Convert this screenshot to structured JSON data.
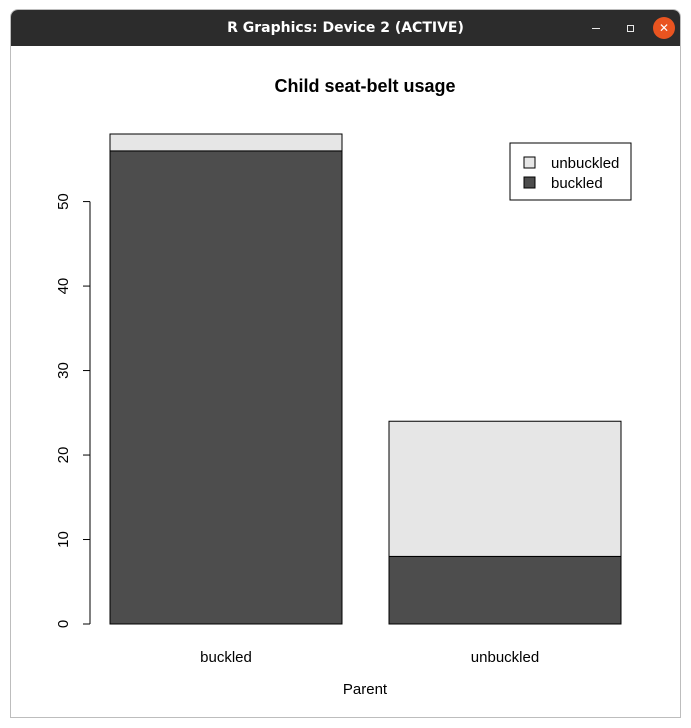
{
  "window": {
    "title": "R Graphics: Device 2 (ACTIVE)",
    "minimize_icon": "minimize-icon",
    "maximize_icon": "maximize-icon",
    "close_icon": "close-icon",
    "close_color": "#e95420"
  },
  "chart_data": {
    "type": "bar",
    "stacked": true,
    "title": "Child seat-belt usage",
    "xlabel": "Parent",
    "ylabel": "",
    "categories": [
      "buckled",
      "unbuckled"
    ],
    "series": [
      {
        "name": "buckled",
        "values": [
          56,
          8
        ],
        "color": "#4d4d4d"
      },
      {
        "name": "unbuckled",
        "values": [
          2,
          16
        ],
        "color": "#e6e6e6"
      }
    ],
    "ylim": [
      0,
      58
    ],
    "yticks": [
      0,
      10,
      20,
      30,
      40,
      50
    ],
    "legend": {
      "position": "top-right",
      "entries": [
        "unbuckled",
        "buckled"
      ]
    },
    "grid": false
  }
}
